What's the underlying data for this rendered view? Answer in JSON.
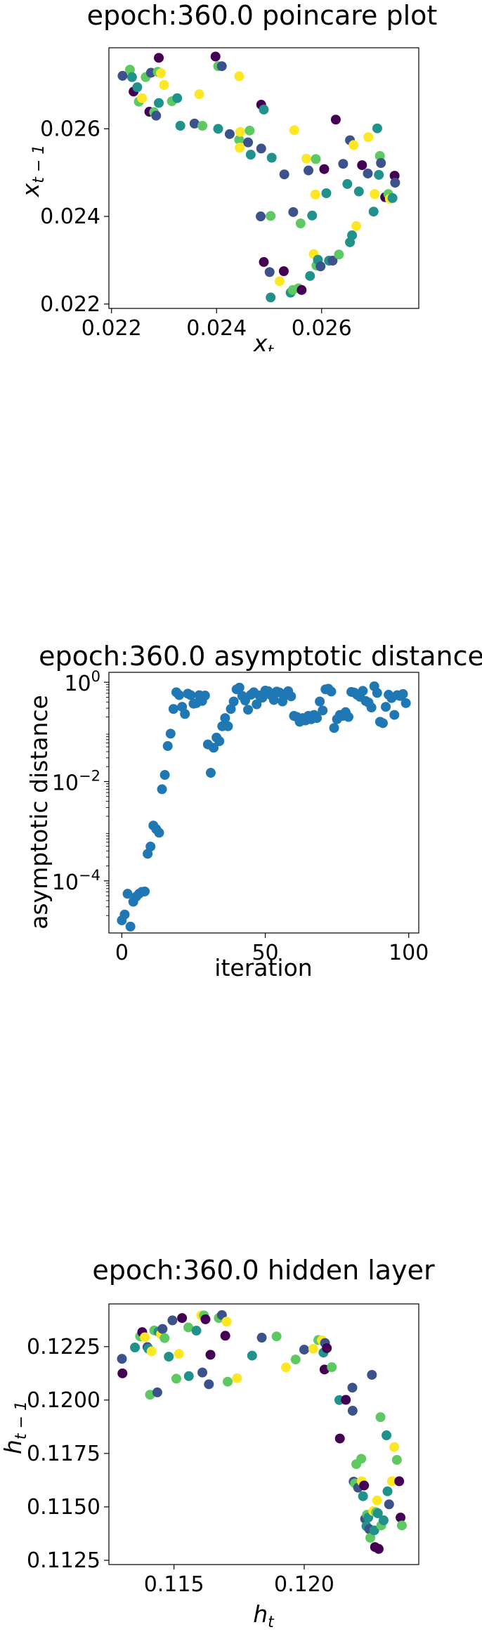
{
  "colors": {
    "viridis": [
      "#440154",
      "#3b528b",
      "#21918c",
      "#5ec962",
      "#fde725"
    ],
    "asymptotic_marker": "#1f77b4"
  },
  "chart_data": [
    {
      "type": "scatter",
      "title": "epoch:360.0 poincare plot",
      "xlabel": "x",
      "xlabel_subscript": "t",
      "ylabel": "x",
      "ylabel_subscript": "t − 1",
      "xlim": [
        0.02195,
        0.02785
      ],
      "ylim": [
        0.0219,
        0.02785
      ],
      "xticks": [
        0.022,
        0.024,
        0.026
      ],
      "xtick_labels": [
        "0.022",
        "0.024",
        "0.026"
      ],
      "yticks": [
        0.022,
        0.024,
        0.026
      ],
      "ytick_labels": [
        "0.022",
        "0.024",
        "0.026"
      ],
      "color_scale": "viridis",
      "points": [
        [
          0.02221,
          0.02721,
          1
        ],
        [
          0.02235,
          0.02735,
          3
        ],
        [
          0.02239,
          0.02718,
          2
        ],
        [
          0.02242,
          0.02685,
          0
        ],
        [
          0.02249,
          0.02695,
          2
        ],
        [
          0.02252,
          0.02662,
          3
        ],
        [
          0.02258,
          0.0267,
          4
        ],
        [
          0.02265,
          0.02718,
          3
        ],
        [
          0.02272,
          0.02639,
          0
        ],
        [
          0.02275,
          0.02728,
          1
        ],
        [
          0.02281,
          0.02638,
          3
        ],
        [
          0.02285,
          0.0263,
          1
        ],
        [
          0.02288,
          0.0273,
          3
        ],
        [
          0.0229,
          0.02659,
          2
        ],
        [
          0.0229,
          0.02762,
          0
        ],
        [
          0.02294,
          0.02727,
          4
        ],
        [
          0.023,
          0.027,
          4
        ],
        [
          0.02315,
          0.02663,
          3
        ],
        [
          0.02325,
          0.0267,
          2
        ],
        [
          0.02331,
          0.02607,
          2
        ],
        [
          0.02358,
          0.02612,
          1
        ],
        [
          0.02367,
          0.02679,
          4
        ],
        [
          0.02373,
          0.02607,
          3
        ],
        [
          0.02398,
          0.02765,
          0
        ],
        [
          0.02403,
          0.02743,
          3
        ],
        [
          0.02403,
          0.026,
          2
        ],
        [
          0.0241,
          0.02743,
          1
        ],
        [
          0.02425,
          0.02588,
          1
        ],
        [
          0.02443,
          0.0272,
          4
        ],
        [
          0.02443,
          0.02575,
          3
        ],
        [
          0.02445,
          0.02593,
          4
        ],
        [
          0.02444,
          0.02557,
          4
        ],
        [
          0.0246,
          0.02569,
          1
        ],
        [
          0.02463,
          0.02596,
          3
        ],
        [
          0.02465,
          0.02541,
          2
        ],
        [
          0.02485,
          0.02655,
          0
        ],
        [
          0.0249,
          0.02644,
          2
        ],
        [
          0.02485,
          0.02555,
          1
        ],
        [
          0.02484,
          0.024,
          1
        ],
        [
          0.0249,
          0.02296,
          0
        ],
        [
          0.02501,
          0.02273,
          1
        ],
        [
          0.02503,
          0.02215,
          2
        ],
        [
          0.02503,
          0.02401,
          3
        ],
        [
          0.02505,
          0.02534,
          2
        ],
        [
          0.0252,
          0.02252,
          4
        ],
        [
          0.02528,
          0.02275,
          0
        ],
        [
          0.02529,
          0.02496,
          1
        ],
        [
          0.02541,
          0.02226,
          2
        ],
        [
          0.02545,
          0.02232,
          3
        ],
        [
          0.02546,
          0.0241,
          1
        ],
        [
          0.02548,
          0.02597,
          4
        ],
        [
          0.02556,
          0.02236,
          3
        ],
        [
          0.0256,
          0.02384,
          3
        ],
        [
          0.02562,
          0.02232,
          0
        ],
        [
          0.02571,
          0.02532,
          4
        ],
        [
          0.02575,
          0.02505,
          1
        ],
        [
          0.02578,
          0.02264,
          2
        ],
        [
          0.02582,
          0.02402,
          2
        ],
        [
          0.02585,
          0.02314,
          4
        ],
        [
          0.02588,
          0.0245,
          4
        ],
        [
          0.02589,
          0.02531,
          3
        ],
        [
          0.0259,
          0.02288,
          3
        ],
        [
          0.02593,
          0.02301,
          2
        ],
        [
          0.02598,
          0.02286,
          1
        ],
        [
          0.02605,
          0.02508,
          0
        ],
        [
          0.02609,
          0.02453,
          2
        ],
        [
          0.02614,
          0.02299,
          2
        ],
        [
          0.02621,
          0.02299,
          1
        ],
        [
          0.02627,
          0.02621,
          0
        ],
        [
          0.02633,
          0.02313,
          3
        ],
        [
          0.02641,
          0.0252,
          1
        ],
        [
          0.02649,
          0.02474,
          2
        ],
        [
          0.02654,
          0.02574,
          1
        ],
        [
          0.02654,
          0.02341,
          2
        ],
        [
          0.02658,
          0.02357,
          2
        ],
        [
          0.02661,
          0.02563,
          4
        ],
        [
          0.02666,
          0.02378,
          4
        ],
        [
          0.02671,
          0.02457,
          2
        ],
        [
          0.02677,
          0.02517,
          0
        ],
        [
          0.02689,
          0.02581,
          4
        ],
        [
          0.02688,
          0.02498,
          1
        ],
        [
          0.02699,
          0.02411,
          2
        ],
        [
          0.02701,
          0.02451,
          4
        ],
        [
          0.02706,
          0.02601,
          2
        ],
        [
          0.02709,
          0.02495,
          2
        ],
        [
          0.02711,
          0.02538,
          3
        ],
        [
          0.02713,
          0.02522,
          1
        ],
        [
          0.02721,
          0.02444,
          0
        ],
        [
          0.02727,
          0.02451,
          3
        ],
        [
          0.0273,
          0.0244,
          4
        ],
        [
          0.02735,
          0.02442,
          2
        ],
        [
          0.02739,
          0.02493,
          0
        ],
        [
          0.0274,
          0.02477,
          1
        ]
      ]
    },
    {
      "type": "scatter",
      "title": "epoch:360.0 asymptotic distance",
      "xlabel": "iteration",
      "ylabel": "asymptotic distance",
      "xlim": [
        -4.5,
        103.5
      ],
      "yscale": "log",
      "ylim_log10": [
        -5.05,
        0.2
      ],
      "xticks": [
        0,
        50,
        100
      ],
      "xtick_labels": [
        "0",
        "50",
        "100"
      ],
      "yticks_log10": [
        -4,
        -2,
        0
      ],
      "ytick_base": "10",
      "ytick_exponents": [
        "−4",
        "−2",
        "0"
      ],
      "x": [
        0,
        1,
        2,
        3,
        4,
        5,
        6,
        7,
        8,
        9,
        10,
        11,
        12,
        13,
        14,
        15,
        16,
        17,
        18,
        19,
        20,
        21,
        22,
        23,
        24,
        25,
        26,
        27,
        28,
        29,
        30,
        31,
        32,
        33,
        34,
        35,
        36,
        37,
        38,
        39,
        40,
        41,
        42,
        43,
        44,
        45,
        46,
        47,
        48,
        49,
        50,
        51,
        52,
        53,
        54,
        55,
        56,
        57,
        58,
        59,
        60,
        61,
        62,
        63,
        64,
        65,
        66,
        67,
        68,
        69,
        70,
        71,
        72,
        73,
        74,
        75,
        76,
        77,
        78,
        79,
        80,
        81,
        82,
        83,
        84,
        85,
        86,
        87,
        88,
        89,
        90,
        91,
        92,
        93,
        94,
        95,
        96,
        97,
        98,
        99
      ],
      "y": [
        1.6e-05,
        2.1e-05,
        5.5e-05,
        1.2e-05,
        3.8e-05,
        4.8e-05,
        5.5e-05,
        6e-05,
        6.1e-05,
        0.00035,
        0.00049,
        0.0013,
        0.0011,
        0.00093,
        0.007,
        0.0136,
        0.052,
        0.092,
        0.29,
        0.63,
        0.55,
        0.32,
        0.23,
        0.59,
        0.55,
        0.37,
        0.38,
        0.55,
        0.42,
        0.54,
        0.056,
        0.015,
        0.048,
        0.077,
        0.065,
        0.13,
        0.19,
        0.13,
        0.29,
        0.41,
        0.72,
        0.78,
        0.53,
        0.43,
        0.28,
        0.56,
        0.63,
        0.36,
        0.54,
        0.49,
        0.68,
        0.66,
        0.55,
        0.44,
        0.65,
        0.62,
        0.41,
        0.55,
        0.66,
        0.52,
        0.21,
        0.2,
        0.16,
        0.19,
        0.17,
        0.21,
        0.18,
        0.22,
        0.19,
        0.41,
        0.27,
        0.72,
        0.74,
        0.65,
        0.12,
        0.18,
        0.22,
        0.21,
        0.25,
        0.2,
        0.64,
        0.62,
        0.56,
        0.51,
        0.67,
        0.42,
        0.39,
        0.31,
        0.83,
        0.61,
        0.16,
        0.15,
        0.32,
        0.56,
        0.48,
        0.22,
        0.55,
        0.53,
        0.58,
        0.38
      ]
    },
    {
      "type": "scatter",
      "title": "epoch:360.0 hidden layer",
      "xlabel": "h",
      "xlabel_subscript": "t",
      "ylabel": "h",
      "ylabel_subscript": "t − 1",
      "xlim": [
        0.1125,
        0.1244
      ],
      "ylim": [
        0.1123,
        0.1245
      ],
      "xticks": [
        0.115,
        0.12
      ],
      "xtick_labels": [
        "0.115",
        "0.120"
      ],
      "yticks": [
        0.1125,
        0.115,
        0.1175,
        0.12,
        0.1225
      ],
      "ytick_labels": [
        "0.1125",
        "0.1150",
        "0.1175",
        "0.1200",
        "0.1225"
      ],
      "color_scale": "viridis",
      "points": [
        [
          0.113,
          0.12193,
          1
        ],
        [
          0.11302,
          0.12125,
          0
        ],
        [
          0.1135,
          0.12246,
          2
        ],
        [
          0.1137,
          0.12298,
          3
        ],
        [
          0.11378,
          0.12318,
          0
        ],
        [
          0.11388,
          0.12294,
          4
        ],
        [
          0.11398,
          0.12248,
          1
        ],
        [
          0.11402,
          0.1224,
          2
        ],
        [
          0.11408,
          0.12025,
          3
        ],
        [
          0.11414,
          0.12228,
          4
        ],
        [
          0.11424,
          0.12326,
          3
        ],
        [
          0.11436,
          0.12036,
          1
        ],
        [
          0.1144,
          0.1232,
          2
        ],
        [
          0.1145,
          0.12308,
          4
        ],
        [
          0.11456,
          0.12333,
          1
        ],
        [
          0.11464,
          0.1229,
          3
        ],
        [
          0.1148,
          0.12203,
          2
        ],
        [
          0.11494,
          0.12373,
          1
        ],
        [
          0.11509,
          0.121,
          3
        ],
        [
          0.11519,
          0.12216,
          4
        ],
        [
          0.11531,
          0.12384,
          0
        ],
        [
          0.11555,
          0.1234,
          3
        ],
        [
          0.11557,
          0.12112,
          2
        ],
        [
          0.11586,
          0.12325,
          2
        ],
        [
          0.11605,
          0.12396,
          4
        ],
        [
          0.11609,
          0.12129,
          1
        ],
        [
          0.11615,
          0.12396,
          3
        ],
        [
          0.11621,
          0.12378,
          0
        ],
        [
          0.11634,
          0.12074,
          1
        ],
        [
          0.1164,
          0.12212,
          0
        ],
        [
          0.11672,
          0.12384,
          3
        ],
        [
          0.11684,
          0.12398,
          1
        ],
        [
          0.11697,
          0.12301,
          0
        ],
        [
          0.11702,
          0.12367,
          4
        ],
        [
          0.11706,
          0.12086,
          3
        ],
        [
          0.11742,
          0.12102,
          4
        ],
        [
          0.118,
          0.12208,
          2
        ],
        [
          0.11837,
          0.12292,
          1
        ],
        [
          0.11894,
          0.12298,
          3
        ],
        [
          0.1193,
          0.12153,
          4
        ],
        [
          0.11967,
          0.1219,
          3
        ],
        [
          0.12,
          0.12236,
          1
        ],
        [
          0.12035,
          0.1224,
          4
        ],
        [
          0.12054,
          0.12281,
          3
        ],
        [
          0.12068,
          0.1228,
          4
        ],
        [
          0.12074,
          0.12222,
          2
        ],
        [
          0.1208,
          0.12267,
          1
        ],
        [
          0.12087,
          0.12243,
          0
        ],
        [
          0.12078,
          0.12143,
          0
        ],
        [
          0.12106,
          0.12154,
          3
        ],
        [
          0.12137,
          0.1182,
          0
        ],
        [
          0.12135,
          0.12,
          2
        ],
        [
          0.1216,
          0.12001,
          0
        ],
        [
          0.12185,
          0.12058,
          1
        ],
        [
          0.12186,
          0.1195,
          1
        ],
        [
          0.1219,
          0.11618,
          1
        ],
        [
          0.12195,
          0.1161,
          3
        ],
        [
          0.122,
          0.117,
          3
        ],
        [
          0.12207,
          0.1159,
          1
        ],
        [
          0.12219,
          0.11725,
          3
        ],
        [
          0.12221,
          0.1162,
          4
        ],
        [
          0.12226,
          0.1155,
          2
        ],
        [
          0.1223,
          0.116,
          0
        ],
        [
          0.12234,
          0.11444,
          1
        ],
        [
          0.12239,
          0.1141,
          2
        ],
        [
          0.12241,
          0.11463,
          3
        ],
        [
          0.12246,
          0.1145,
          2
        ],
        [
          0.1225,
          0.11396,
          1
        ],
        [
          0.12254,
          0.11355,
          3
        ],
        [
          0.1226,
          0.12118,
          1
        ],
        [
          0.12265,
          0.1148,
          4
        ],
        [
          0.12269,
          0.1139,
          2
        ],
        [
          0.12272,
          0.11312,
          0
        ],
        [
          0.12276,
          0.11475,
          3
        ],
        [
          0.1228,
          0.1153,
          4
        ],
        [
          0.12283,
          0.1147,
          2
        ],
        [
          0.12286,
          0.11303,
          0
        ],
        [
          0.12293,
          0.1192,
          3
        ],
        [
          0.12296,
          0.11413,
          3
        ],
        [
          0.12305,
          0.11437,
          2
        ],
        [
          0.12316,
          0.11835,
          2
        ],
        [
          0.1232,
          0.11573,
          2
        ],
        [
          0.12326,
          0.11512,
          1
        ],
        [
          0.12337,
          0.1162,
          4
        ],
        [
          0.12346,
          0.1178,
          4
        ],
        [
          0.12356,
          0.1172,
          3
        ],
        [
          0.12365,
          0.1162,
          0
        ],
        [
          0.1237,
          0.1145,
          0
        ],
        [
          0.12375,
          0.11413,
          3
        ]
      ]
    }
  ]
}
